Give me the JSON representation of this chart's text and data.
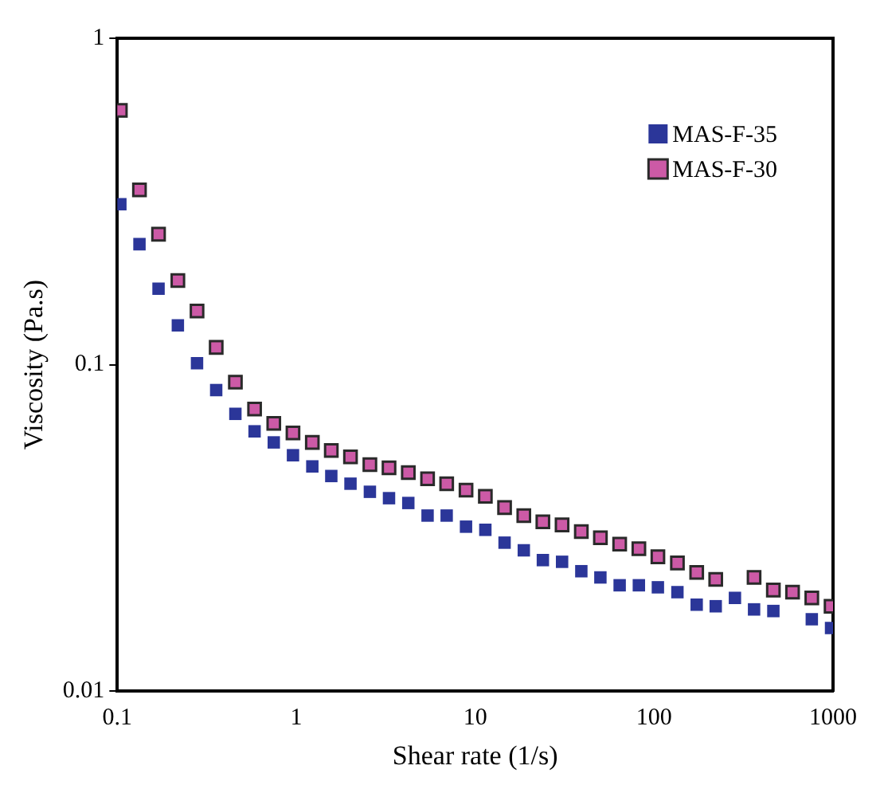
{
  "chart_data": {
    "type": "scatter",
    "xlabel": "Shear rate (1/s)",
    "ylabel": "Viscosity (Pa.s)",
    "x": [
      0.104,
      0.133,
      0.17,
      0.218,
      0.279,
      0.357,
      0.457,
      0.585,
      0.749,
      0.959,
      1.23,
      1.57,
      2.01,
      2.58,
      3.3,
      4.23,
      5.42,
      6.93,
      8.89,
      11.4,
      14.6,
      18.7,
      23.9,
      30.6,
      39.2,
      50.1,
      64.2,
      82.2,
      105,
      135,
      173,
      221,
      283,
      362,
      464,
      594,
      761,
      975
    ],
    "series": [
      {
        "name": "MAS-F-35",
        "color": "#2b3699",
        "values": [
          0.31,
          0.234,
          0.171,
          0.132,
          0.101,
          0.0836,
          0.0707,
          0.0625,
          0.0578,
          0.0528,
          0.0488,
          0.0456,
          0.0432,
          0.0408,
          0.039,
          0.0377,
          0.0345,
          0.0345,
          0.0319,
          0.0312,
          0.0285,
          0.027,
          0.0252,
          0.0249,
          0.0233,
          0.0223,
          0.0211,
          0.0211,
          0.0208,
          0.0201,
          0.0184,
          0.0182,
          0.0193,
          0.0178,
          0.0176,
          null,
          0.0166,
          0.0156
        ]
      },
      {
        "name": "MAS-F-30",
        "color": "#cc5aa6",
        "values": [
          0.601,
          0.343,
          0.251,
          0.181,
          0.146,
          0.113,
          0.0884,
          0.0731,
          0.0661,
          0.0618,
          0.0578,
          0.0546,
          0.0522,
          0.0494,
          0.0483,
          0.0467,
          0.0447,
          0.0432,
          0.0413,
          0.0395,
          0.0365,
          0.0345,
          0.033,
          0.0323,
          0.0308,
          0.0295,
          0.0282,
          0.0273,
          0.0258,
          0.0247,
          0.0231,
          0.022,
          null,
          0.0223,
          0.0204,
          0.0201,
          0.0193,
          0.0182
        ]
      }
    ],
    "xlim": [
      0.1,
      1000
    ],
    "ylim": [
      0.01,
      1
    ],
    "xticks": [
      0.1,
      1,
      10,
      100,
      1000
    ],
    "yticks": [
      0.01,
      0.1,
      1
    ],
    "log": "xy",
    "grid": false,
    "legend": "top right",
    "marker": "square"
  }
}
